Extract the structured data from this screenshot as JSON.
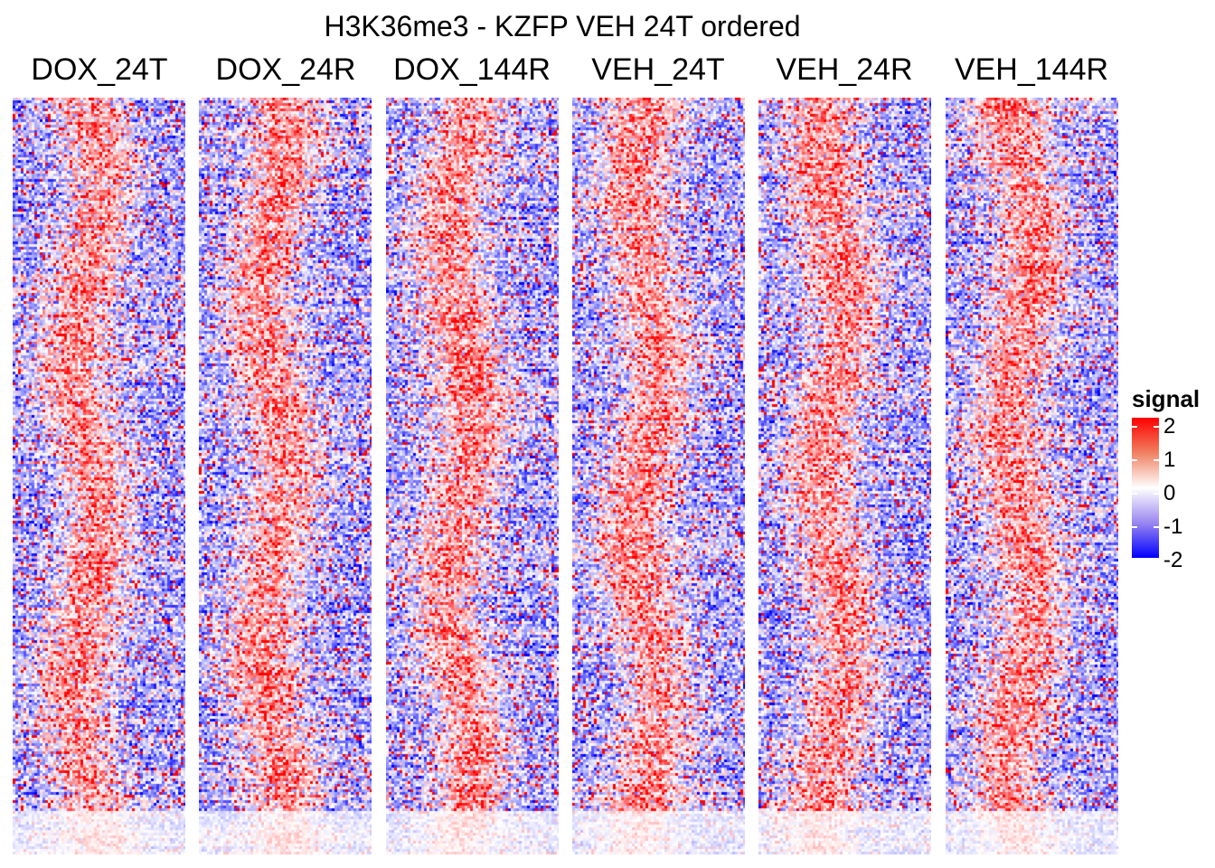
{
  "chart_data": {
    "type": "heatmap",
    "title": "H3K36me3 - KZFP VEH 24T ordered",
    "panels": [
      "DOX_24T",
      "DOX_24R",
      "DOX_144R",
      "VEH_24T",
      "VEH_24R",
      "VEH_144R"
    ],
    "legend": {
      "title": "signal",
      "ticks": [
        "2",
        "1",
        "0",
        "-1",
        "-2"
      ],
      "range": [
        -2,
        2
      ],
      "placement": "right"
    },
    "color_scale": {
      "low": "#0000ff",
      "mid": "#ffffff",
      "high": "#ff0000"
    }
  }
}
